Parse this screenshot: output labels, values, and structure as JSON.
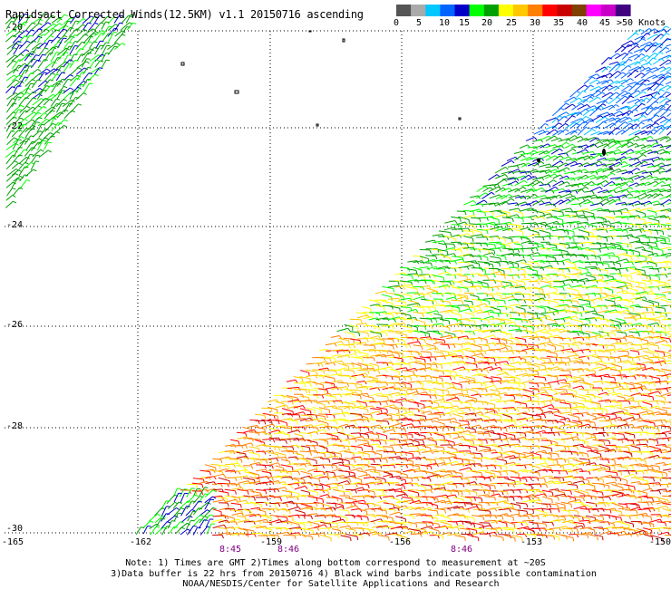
{
  "title": "Rapidsact Corrected Winds(12.5KM) v1.1 20150716 ascending",
  "legend": {
    "colors": [
      "#555555",
      "#aaaaaa",
      "#00c8ff",
      "#0064ff",
      "#0000c8",
      "#00ff00",
      "#00a000",
      "#ffff00",
      "#ffc800",
      "#ff8000",
      "#ff0000",
      "#c80000",
      "#804000",
      "#ff00ff",
      "#c800c8",
      "#400080"
    ],
    "ticks": [
      "0",
      "5",
      "10",
      "15",
      "20",
      "25",
      "30",
      "35",
      "40",
      "45",
      ">50 Knots"
    ]
  },
  "lat_labels": [
    "-20",
    "-22",
    "-24",
    "-26",
    "-28",
    "-30"
  ],
  "lon_labels": [
    "-165",
    "-162",
    "-159",
    "-156",
    "-153",
    "-150"
  ],
  "time_labels": [
    "8:45",
    "8:46",
    "8:46"
  ],
  "notes": {
    "line1": "Note: 1) Times are GMT 2)Times along bottom correspond to measurement at ~20S",
    "line2": "3)Data buffer is 22 hrs from 20150716 4) Black wind barbs indicate possible contamination",
    "line3": "NOAA/NESDIS/Center for Satellite Applications and Research"
  }
}
